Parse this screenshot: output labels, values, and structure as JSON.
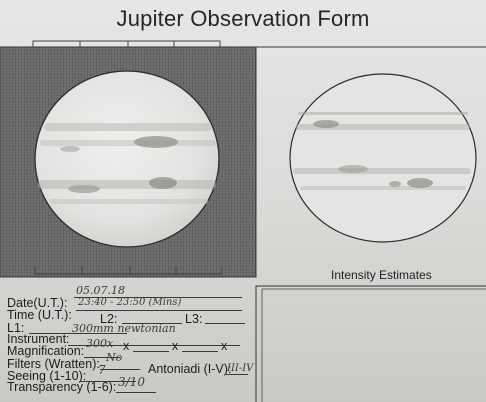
{
  "form": {
    "title": "Jupiter Observation Form",
    "intensity_label": "Intensity Estimates",
    "fields": {
      "date_label": "Date(U.T.):",
      "date_value": "05.07.18",
      "time_label": "Time (U.T.):",
      "time_value": "23:40 - 23:50 (Mins)",
      "l1_label": "L1:",
      "l2_label": "L2:",
      "l3_label": "L3:",
      "instrument_label": "Instrument:",
      "instrument_value": "300mm newtonian",
      "magnification_label": "Magnification:",
      "magnification_value": "300x",
      "times_sign": "x",
      "filters_label": "Filters (Wratten):",
      "filters_value": "No",
      "seeing_label": "Seeing (1-10):",
      "seeing_value": "7",
      "antoniadi_label": "Antoniadi (I-V):",
      "antoniadi_value": "III-IV",
      "transparency_label": "Transparency (1-6):",
      "transparency_value": "3/10"
    }
  },
  "colors": {
    "paper": "#e2e2e0",
    "ink": "#222222",
    "pencil": "#3b3b3b",
    "shading": "#5a5a5a"
  }
}
